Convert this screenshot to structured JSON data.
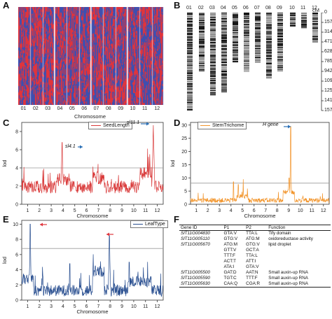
{
  "panels": {
    "A": {
      "label": "A",
      "xlabel": "Chromosome",
      "chromosomes": [
        "01",
        "02",
        "03",
        "04",
        "05",
        "06",
        "07",
        "08",
        "09",
        "10",
        "11",
        "12"
      ]
    },
    "B": {
      "label": "B",
      "unit": "cM",
      "chromosomes": [
        "01",
        "02",
        "03",
        "04",
        "05",
        "06",
        "07",
        "08",
        "09",
        "10",
        "11",
        "12"
      ],
      "ticks": [
        "0",
        "157",
        "314",
        "471",
        "628",
        "785",
        "942",
        "1099",
        "1256",
        "1413",
        "1570"
      ],
      "lengths_cM": [
        1570,
        940,
        1330,
        1280,
        800,
        950,
        800,
        1060,
        940,
        230,
        260,
        480
      ]
    },
    "C": {
      "label": "C",
      "legend": "SeedLength",
      "color": "#d93a3a",
      "annotations": [
        "sl4.1",
        "sl11.1"
      ]
    },
    "D": {
      "label": "D",
      "legend": "StemTrichome",
      "color": "#f2952c",
      "annotations": [
        "H gene"
      ]
    },
    "E": {
      "label": "E",
      "legend": "LeafType",
      "color": "#274d8f"
    },
    "F": {
      "label": "F",
      "headers": [
        "Gene ID",
        "P1",
        "P2",
        "Function"
      ],
      "rows": [
        {
          "id": "SlT11G004830",
          "p1": "GTA:V",
          "p2": "TTA:L",
          "fn": "Tify domain"
        },
        {
          "id": "SlT11G005110",
          "p1": "GTG:V",
          "p2": "ATG:M",
          "fn": "oxidoreductase activity"
        },
        {
          "id": "SlT11G005670",
          "p1": "ATG:M",
          "p2": "GTG:V",
          "fn": "lipid droplet"
        },
        {
          "id": "",
          "p1": "GTT:V",
          "p2": "GCT:A",
          "fn": ""
        },
        {
          "id": "",
          "p1": "TTT:F",
          "p2": "TTA:L",
          "fn": ""
        },
        {
          "id": "",
          "p1": "ACT:T",
          "p2": "ATT:I",
          "fn": ""
        },
        {
          "id": "",
          "p1": "ATA:I",
          "p2": "GTA:V",
          "fn": ""
        },
        {
          "id": "SlT11G005500",
          "p1": "GAT:D",
          "p2": "AAT:N",
          "fn": "Small auxin-up RNA"
        },
        {
          "id": "SlT11G005590",
          "p1": "TGT:C",
          "p2": "TTT:F",
          "fn": "Small auxin-up RNA"
        },
        {
          "id": "SlT11G005630",
          "p1": "CAA:Q",
          "p2": "CGA:R",
          "fn": "Small auxin-up RNA"
        }
      ]
    }
  },
  "manhattan": {
    "xlabel": "Chromosome",
    "ylabel": "lod",
    "chrom_ticks": [
      "1",
      "2",
      "3",
      "4",
      "5",
      "6",
      "7",
      "8",
      "9",
      "10",
      "11",
      "12"
    ]
  },
  "chart_data": [
    {
      "type": "line",
      "title": "",
      "series": [
        {
          "name": "SeedLength"
        }
      ],
      "xlabel": "Chromosome",
      "ylabel": "lod",
      "ylim": [
        0,
        9
      ],
      "yticks": [
        0,
        2,
        4,
        6,
        8
      ],
      "threshold": 4.0,
      "peaks": [
        {
          "label": "sl4.1",
          "chromosome": 4,
          "lod": 6.8
        },
        {
          "label": "sl11.1",
          "chromosome": 11,
          "lod": 8.7
        }
      ]
    },
    {
      "type": "line",
      "title": "",
      "series": [
        {
          "name": "StemTrichome"
        }
      ],
      "xlabel": "Chromosome",
      "ylabel": "lod",
      "ylim": [
        0,
        31
      ],
      "yticks": [
        0,
        5,
        10,
        15,
        20,
        25,
        30
      ],
      "threshold": 8.0,
      "peaks": [
        {
          "label": "H gene",
          "chromosome": 9,
          "lod": 29.5
        }
      ]
    },
    {
      "type": "line",
      "title": "",
      "series": [
        {
          "name": "LeafType"
        }
      ],
      "xlabel": "Chromosome",
      "ylabel": "lod",
      "ylim": [
        0,
        10.5
      ],
      "yticks": [
        0,
        2,
        4,
        6,
        8,
        10
      ],
      "threshold": 6.8,
      "peaks": [
        {
          "chromosome": 1,
          "lod": 10.0
        },
        {
          "chromosome": 7,
          "lod": 8.5
        }
      ]
    }
  ]
}
